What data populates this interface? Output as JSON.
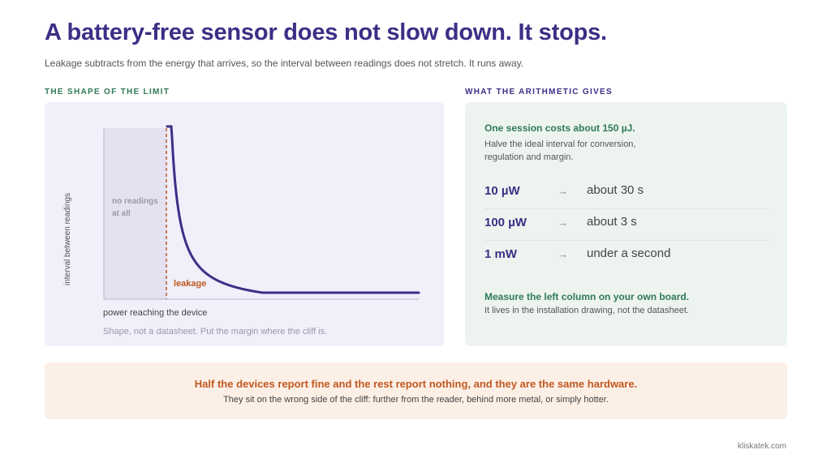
{
  "header": {
    "title": "A battery-free sensor does not slow down. It stops.",
    "subtitle": "Leakage subtracts from the energy that arrives, so the interval between readings does not stretch. It runs away."
  },
  "left_section": {
    "label": "THE SHAPE OF THE LIMIT",
    "diagram": {
      "y_axis_label": "interval between readings",
      "x_axis_label": "power reaching the device",
      "dead_zone_label_line1": "no readings",
      "dead_zone_label_line2": "at all",
      "threshold_label": "leakage",
      "caption": "Shape, not a datasheet. Put the margin where the cliff is."
    }
  },
  "right_section": {
    "label": "WHAT THE ARITHMETIC GIVES",
    "head": "One session costs about 150 µJ.",
    "body_line1": "Halve the ideal interval for conversion,",
    "body_line2": "regulation and margin.",
    "rows": [
      {
        "power": "10 µW",
        "arrow": "→",
        "interval": "about 30 s"
      },
      {
        "power": "100 µW",
        "arrow": "→",
        "interval": "about 3 s"
      },
      {
        "power": "1 mW",
        "arrow": "→",
        "interval": "under a second"
      }
    ],
    "foot_head": "Measure the left column on your own board.",
    "foot_body": "It lives in the installation drawing, not the datasheet."
  },
  "banner": {
    "head": "Half the devices report fine and the rest report nothing, and they are the same hardware.",
    "body": "They sit on the wrong side of the cliff: further from the reader, behind more metal, or simply hotter."
  },
  "footer": {
    "brand": "kliskatek.com"
  },
  "colors": {
    "title": "#3b2f86",
    "accent_green": "#2f7a57",
    "curve": "#3b2f86",
    "leakage": "#c0581f",
    "left_panel_bg": "#f0effa",
    "right_panel_bg": "#edf4f0",
    "banner_bg": "#fcefe6"
  }
}
